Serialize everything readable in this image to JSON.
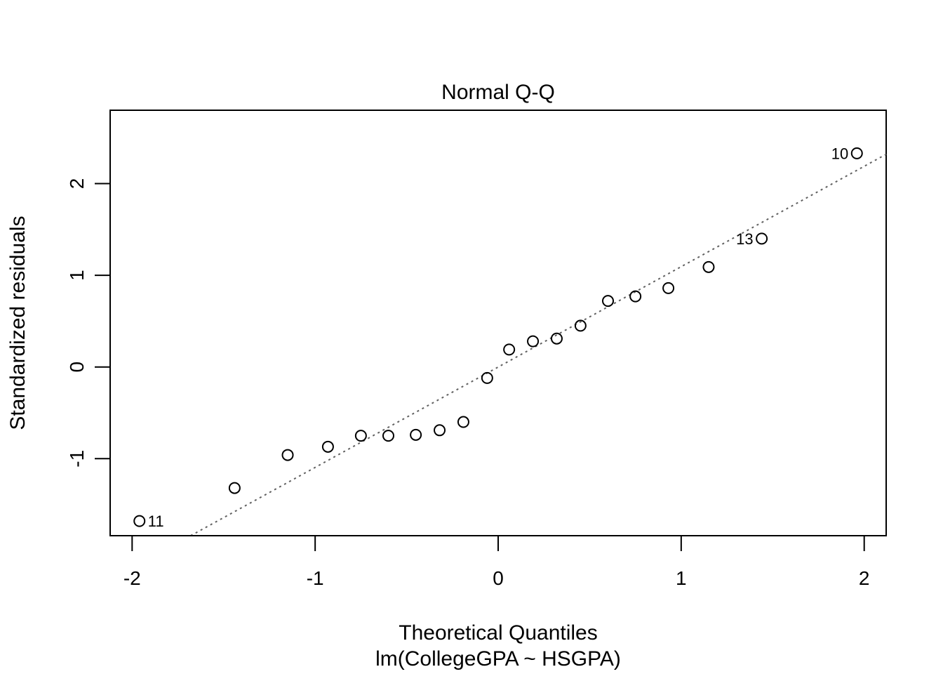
{
  "chart_data": {
    "type": "scatter",
    "title": "Normal Q-Q",
    "xlabel": "Theoretical Quantiles",
    "subtitle": "lm(CollegeGPA ~ HSGPA)",
    "ylabel": "Standardized residuals",
    "xlim": [
      -2.12,
      2.12
    ],
    "ylim": [
      -1.84,
      2.8
    ],
    "x_ticks": [
      -2,
      -1,
      0,
      1,
      2
    ],
    "x_tick_labels": [
      "-2",
      "-1",
      "0",
      "1",
      "2"
    ],
    "y_ticks": [
      -1,
      0,
      1,
      2
    ],
    "y_tick_labels": [
      "-1",
      "0",
      "1",
      "2"
    ],
    "grid": false,
    "points": [
      {
        "x": -1.96,
        "y": -1.68,
        "label": "11"
      },
      {
        "x": -1.44,
        "y": -1.32,
        "label": ""
      },
      {
        "x": -1.15,
        "y": -0.96,
        "label": ""
      },
      {
        "x": -0.93,
        "y": -0.87,
        "label": ""
      },
      {
        "x": -0.75,
        "y": -0.75,
        "label": ""
      },
      {
        "x": -0.6,
        "y": -0.75,
        "label": ""
      },
      {
        "x": -0.45,
        "y": -0.74,
        "label": ""
      },
      {
        "x": -0.32,
        "y": -0.69,
        "label": ""
      },
      {
        "x": -0.19,
        "y": -0.6,
        "label": ""
      },
      {
        "x": -0.06,
        "y": -0.12,
        "label": ""
      },
      {
        "x": 0.06,
        "y": 0.19,
        "label": ""
      },
      {
        "x": 0.19,
        "y": 0.28,
        "label": ""
      },
      {
        "x": 0.32,
        "y": 0.31,
        "label": ""
      },
      {
        "x": 0.45,
        "y": 0.45,
        "label": ""
      },
      {
        "x": 0.6,
        "y": 0.72,
        "label": ""
      },
      {
        "x": 0.75,
        "y": 0.77,
        "label": ""
      },
      {
        "x": 0.93,
        "y": 0.86,
        "label": ""
      },
      {
        "x": 1.15,
        "y": 1.09,
        "label": ""
      },
      {
        "x": 1.44,
        "y": 1.4,
        "label": "13"
      },
      {
        "x": 1.96,
        "y": 2.33,
        "label": "10"
      }
    ],
    "reference_line": {
      "style": "dotted",
      "color": "#606060",
      "x1": -1.68,
      "y1": -1.84,
      "x2": 2.12,
      "y2": 2.32
    }
  }
}
